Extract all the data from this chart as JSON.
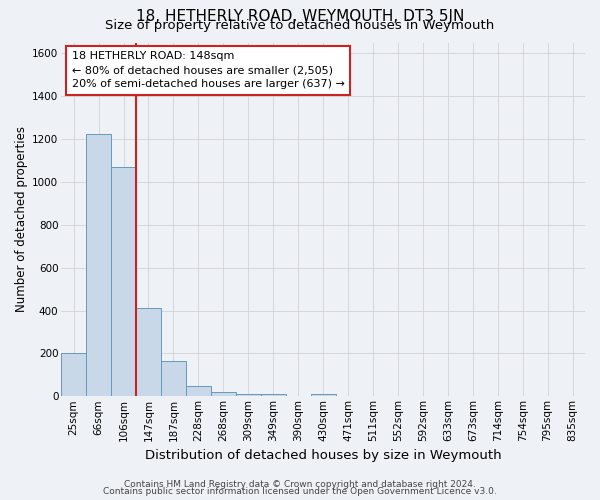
{
  "title": "18, HETHERLY ROAD, WEYMOUTH, DT3 5JN",
  "subtitle": "Size of property relative to detached houses in Weymouth",
  "xlabel": "Distribution of detached houses by size in Weymouth",
  "ylabel": "Number of detached properties",
  "categories": [
    "25sqm",
    "66sqm",
    "106sqm",
    "147sqm",
    "187sqm",
    "228sqm",
    "268sqm",
    "309sqm",
    "349sqm",
    "390sqm",
    "430sqm",
    "471sqm",
    "511sqm",
    "552sqm",
    "592sqm",
    "633sqm",
    "673sqm",
    "714sqm",
    "754sqm",
    "795sqm",
    "835sqm"
  ],
  "values": [
    200,
    1225,
    1070,
    410,
    165,
    50,
    22,
    12,
    10,
    0,
    12,
    0,
    0,
    0,
    0,
    0,
    0,
    0,
    0,
    0,
    0
  ],
  "bar_color": "#c8d8e8",
  "bar_edge_color": "#6699bb",
  "grid_color": "#cccccc",
  "bg_color": "#eef2f6",
  "vline_color": "#cc2222",
  "annotation_line1": "18 HETHERLY ROAD: 148sqm",
  "annotation_line2": "← 80% of detached houses are smaller (2,505)",
  "annotation_line3": "20% of semi-detached houses are larger (637) →",
  "annotation_box_color": "#ffffff",
  "annotation_box_edge": "#cc2222",
  "ylim": [
    0,
    1650
  ],
  "yticks": [
    0,
    200,
    400,
    600,
    800,
    1000,
    1200,
    1400,
    1600
  ],
  "footer1": "Contains HM Land Registry data © Crown copyright and database right 2024.",
  "footer2": "Contains public sector information licensed under the Open Government Licence v3.0.",
  "title_fontsize": 11,
  "subtitle_fontsize": 9.5,
  "xlabel_fontsize": 9.5,
  "ylabel_fontsize": 8.5,
  "tick_fontsize": 7.5,
  "annotation_fontsize": 8,
  "footer_fontsize": 6.5
}
